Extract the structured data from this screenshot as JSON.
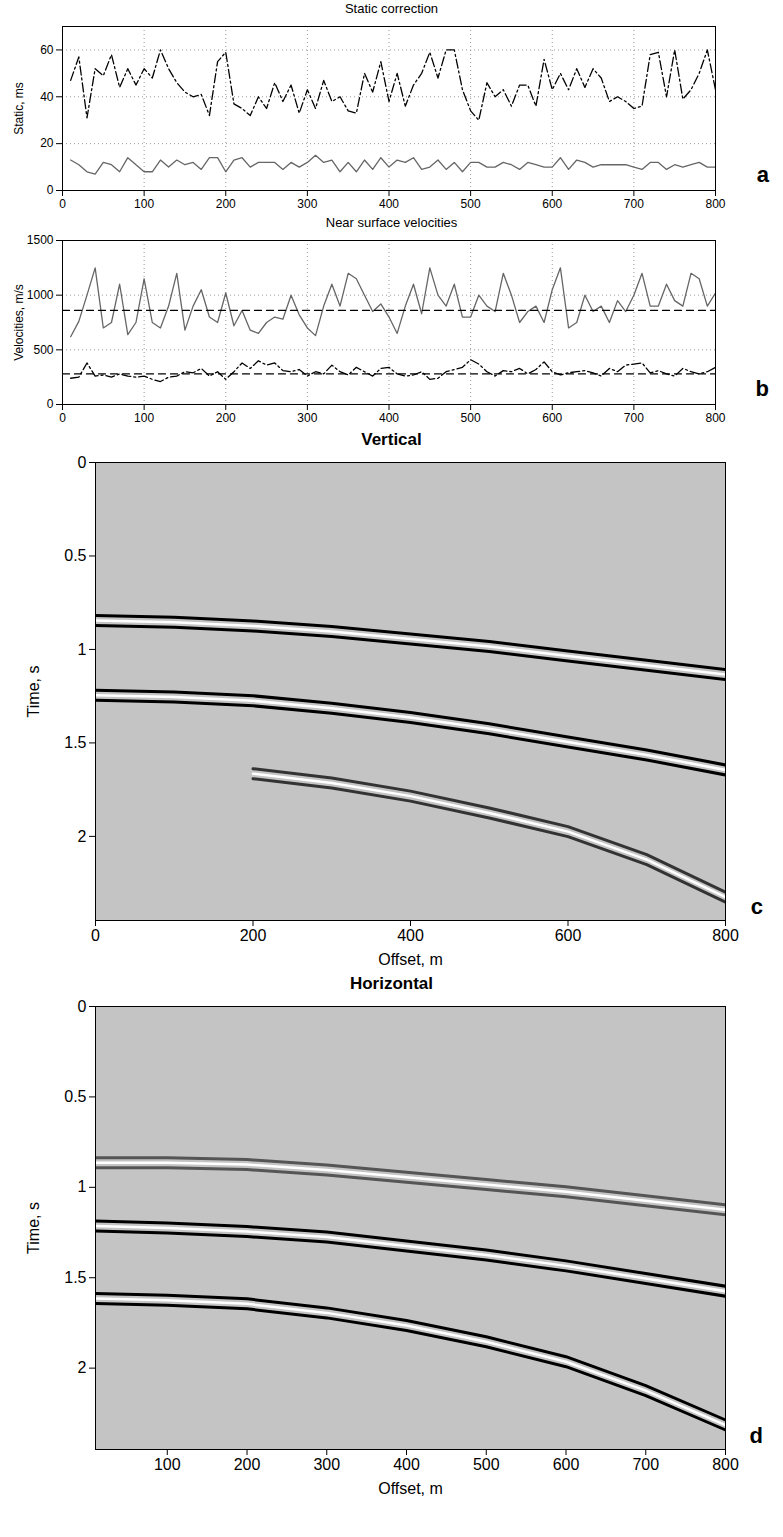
{
  "chart_data": [
    {
      "type": "line",
      "title": "Static correction",
      "annotation": "a",
      "ylabel": "Static, ms",
      "xlim": [
        0,
        800
      ],
      "xticks": [
        0,
        100,
        200,
        300,
        400,
        500,
        600,
        700,
        800
      ],
      "ylim": [
        0,
        70
      ],
      "yticks": [
        0,
        20,
        40,
        60
      ],
      "grid": true,
      "x": [
        10,
        20,
        30,
        40,
        50,
        60,
        70,
        80,
        90,
        100,
        110,
        120,
        130,
        140,
        150,
        160,
        170,
        180,
        190,
        200,
        210,
        220,
        230,
        240,
        250,
        260,
        270,
        280,
        290,
        300,
        310,
        320,
        330,
        340,
        350,
        360,
        370,
        380,
        390,
        400,
        410,
        420,
        430,
        440,
        450,
        460,
        470,
        480,
        490,
        500,
        510,
        520,
        530,
        540,
        550,
        560,
        570,
        580,
        590,
        600,
        610,
        620,
        630,
        640,
        650,
        660,
        670,
        680,
        690,
        700,
        710,
        720,
        730,
        740,
        750,
        760,
        770,
        780,
        790,
        800
      ],
      "series": [
        {
          "color": "#000000",
          "line_style": "dashdot",
          "values": [
            47,
            57,
            31,
            52,
            49,
            58,
            44,
            52,
            45,
            52,
            48,
            60,
            52,
            46,
            42,
            40,
            41,
            32,
            55,
            59,
            37,
            35,
            32,
            40,
            35,
            46,
            38,
            45,
            33,
            43,
            35,
            47,
            38,
            40,
            34,
            33,
            50,
            42,
            55,
            38,
            50,
            36,
            45,
            50,
            59,
            48,
            60,
            60,
            43,
            34,
            30,
            46,
            40,
            43,
            36,
            45,
            45,
            36,
            56,
            43,
            50,
            43,
            52,
            44,
            52,
            48,
            38,
            40,
            38,
            35,
            36,
            58,
            59,
            40,
            60,
            39,
            43,
            50,
            60,
            43
          ]
        },
        {
          "color": "#666666",
          "line_style": "solid",
          "values": [
            13,
            11,
            8,
            7,
            12,
            11,
            8,
            14,
            11,
            8,
            8,
            13,
            10,
            13,
            11,
            12,
            9,
            14,
            14,
            8,
            13,
            14,
            10,
            12,
            12,
            12,
            9,
            12,
            10,
            12,
            15,
            12,
            13,
            8,
            12,
            8,
            13,
            9,
            14,
            10,
            13,
            12,
            14,
            9,
            10,
            13,
            9,
            12,
            8,
            12,
            12,
            10,
            10,
            12,
            11,
            9,
            12,
            11,
            10,
            10,
            14,
            9,
            13,
            12,
            10,
            11,
            11,
            11,
            11,
            10,
            9,
            12,
            12,
            9,
            11,
            10,
            11,
            12,
            10,
            10
          ]
        }
      ]
    },
    {
      "type": "line",
      "title": "Near surface velocities",
      "annotation": "b",
      "ylabel": "Velocities, m/s",
      "xlim": [
        0,
        800
      ],
      "xticks": [
        0,
        100,
        200,
        300,
        400,
        500,
        600,
        700,
        800
      ],
      "ylim": [
        0,
        1500
      ],
      "yticks": [
        0,
        500,
        1000,
        1500
      ],
      "grid": true,
      "x": [
        10,
        20,
        30,
        40,
        50,
        60,
        70,
        80,
        90,
        100,
        110,
        120,
        130,
        140,
        150,
        160,
        170,
        180,
        190,
        200,
        210,
        220,
        230,
        240,
        250,
        260,
        270,
        280,
        290,
        300,
        310,
        320,
        330,
        340,
        350,
        360,
        370,
        380,
        390,
        400,
        410,
        420,
        430,
        440,
        450,
        460,
        470,
        480,
        490,
        500,
        510,
        520,
        530,
        540,
        550,
        560,
        570,
        580,
        590,
        600,
        610,
        620,
        630,
        640,
        650,
        660,
        670,
        680,
        690,
        700,
        710,
        720,
        730,
        740,
        750,
        760,
        770,
        780,
        790,
        800
      ],
      "series": [
        {
          "color": "#666666",
          "line_style": "solid",
          "values": [
            620,
            760,
            1000,
            1250,
            700,
            750,
            1100,
            640,
            750,
            1150,
            750,
            700,
            900,
            1200,
            680,
            900,
            1050,
            800,
            750,
            1020,
            720,
            860,
            680,
            650,
            750,
            800,
            780,
            1000,
            820,
            700,
            630,
            900,
            1100,
            900,
            1200,
            1150,
            1000,
            850,
            920,
            800,
            650,
            900,
            1100,
            830,
            1250,
            1000,
            900,
            1100,
            800,
            800,
            1000,
            900,
            850,
            1200,
            1000,
            750,
            850,
            900,
            750,
            1050,
            1250,
            700,
            750,
            1000,
            850,
            900,
            750,
            950,
            850,
            1000,
            1200,
            900,
            900,
            1100,
            950,
            900,
            1200,
            1150,
            900,
            1020
          ]
        },
        {
          "color": "#000000",
          "line_style": "dashdot",
          "values": [
            240,
            250,
            380,
            260,
            270,
            250,
            280,
            260,
            250,
            260,
            230,
            210,
            250,
            260,
            300,
            290,
            330,
            260,
            300,
            230,
            300,
            380,
            330,
            400,
            360,
            380,
            310,
            300,
            320,
            260,
            300,
            280,
            360,
            300,
            270,
            340,
            300,
            260,
            330,
            340,
            280,
            260,
            270,
            300,
            230,
            240,
            300,
            320,
            340,
            410,
            370,
            300,
            260,
            310,
            300,
            330,
            280,
            320,
            390,
            300,
            270,
            290,
            300,
            310,
            290,
            260,
            330,
            300,
            360,
            370,
            380,
            290,
            310,
            280,
            260,
            330,
            300,
            280,
            300,
            340
          ]
        },
        {
          "color": "#000000",
          "line_style": "dashed",
          "x": [
            0,
            800
          ],
          "values": [
            860,
            860
          ]
        },
        {
          "color": "#000000",
          "line_style": "dashed",
          "x": [
            0,
            800
          ],
          "values": [
            280,
            280
          ]
        }
      ]
    },
    {
      "type": "seismic",
      "title": "Vertical",
      "annotation": "c",
      "xlabel": "Offset, m",
      "ylabel": "Time, s",
      "xlim": [
        0,
        800
      ],
      "xticks": [
        0,
        200,
        400,
        600,
        800
      ],
      "ylim": [
        0,
        2.45
      ],
      "yticks": [
        0,
        0.5,
        1,
        1.5,
        2
      ],
      "series": [
        {
          "color": "#000000",
          "x": [
            0,
            100,
            200,
            300,
            400,
            500,
            600,
            700,
            800
          ],
          "values": [
            0.85,
            0.86,
            0.88,
            0.91,
            0.95,
            0.99,
            1.04,
            1.09,
            1.14
          ]
        },
        {
          "color": "#000000",
          "x": [
            0,
            100,
            200,
            300,
            400,
            500,
            600,
            700,
            800
          ],
          "values": [
            1.25,
            1.26,
            1.28,
            1.32,
            1.37,
            1.43,
            1.5,
            1.57,
            1.65
          ]
        },
        {
          "color": "#333333",
          "x": [
            200,
            300,
            400,
            500,
            600,
            700,
            800
          ],
          "values": [
            1.67,
            1.72,
            1.79,
            1.88,
            1.98,
            2.13,
            2.33
          ]
        }
      ]
    },
    {
      "type": "seismic",
      "title": "Horizontal",
      "annotation": "d",
      "xlabel": "Offset, m",
      "ylabel": "Time, s",
      "xlim": [
        10,
        800
      ],
      "xticks": [
        100,
        200,
        300,
        400,
        500,
        600,
        700,
        800
      ],
      "ylim": [
        0,
        2.45
      ],
      "yticks": [
        0,
        0.5,
        1,
        1.5,
        2
      ],
      "series": [
        {
          "color": "#555555",
          "x": [
            10,
            100,
            200,
            300,
            400,
            500,
            600,
            700,
            800
          ],
          "values": [
            0.87,
            0.87,
            0.88,
            0.91,
            0.95,
            0.99,
            1.03,
            1.08,
            1.13
          ]
        },
        {
          "color": "#000000",
          "x": [
            10,
            100,
            200,
            300,
            400,
            500,
            600,
            700,
            800
          ],
          "values": [
            1.22,
            1.23,
            1.25,
            1.28,
            1.33,
            1.38,
            1.44,
            1.51,
            1.58
          ]
        },
        {
          "color": "#000000",
          "x": [
            10,
            100,
            200,
            300,
            400,
            500,
            600,
            700,
            800
          ],
          "values": [
            1.62,
            1.63,
            1.65,
            1.7,
            1.77,
            1.86,
            1.97,
            2.13,
            2.32
          ]
        }
      ]
    }
  ]
}
